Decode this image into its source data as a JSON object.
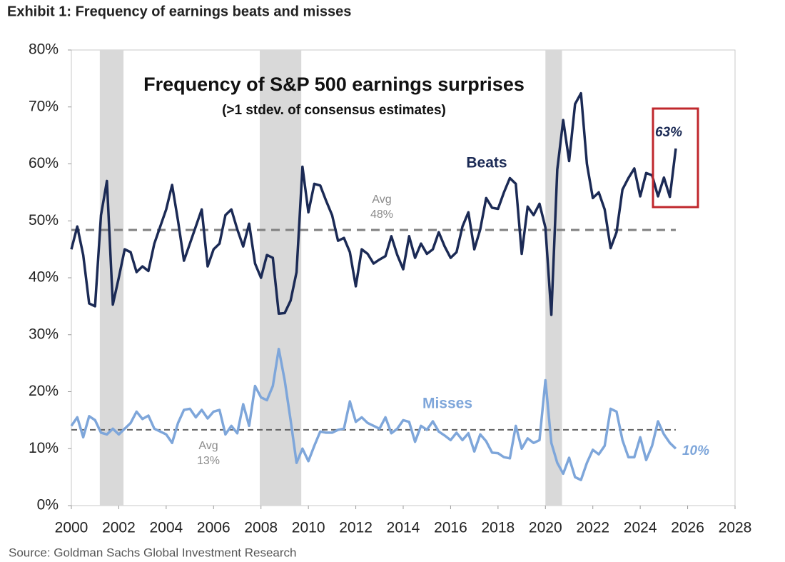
{
  "header": "Exhibit 1: Frequency of earnings beats and misses",
  "source": "Source: Goldman Sachs Global Investment Research",
  "chart_data": {
    "type": "line",
    "title": "Frequency of S&P 500 earnings surprises",
    "subtitle": "(>1 stdev. of consensus estimates)",
    "x": [
      2000,
      2000.25,
      2000.5,
      2000.75,
      2001,
      2001.25,
      2001.5,
      2001.75,
      2002,
      2002.25,
      2002.5,
      2002.75,
      2003,
      2003.25,
      2003.5,
      2003.75,
      2004,
      2004.25,
      2004.5,
      2004.75,
      2005,
      2005.25,
      2005.5,
      2005.75,
      2006,
      2006.25,
      2006.5,
      2006.75,
      2007,
      2007.25,
      2007.5,
      2007.75,
      2008,
      2008.25,
      2008.5,
      2008.75,
      2009,
      2009.25,
      2009.5,
      2009.75,
      2010,
      2010.25,
      2010.5,
      2010.75,
      2011,
      2011.25,
      2011.5,
      2011.75,
      2012,
      2012.25,
      2012.5,
      2012.75,
      2013,
      2013.25,
      2013.5,
      2013.75,
      2014,
      2014.25,
      2014.5,
      2014.75,
      2015,
      2015.25,
      2015.5,
      2015.75,
      2016,
      2016.25,
      2016.5,
      2016.75,
      2017,
      2017.25,
      2017.5,
      2017.75,
      2018,
      2018.25,
      2018.5,
      2018.75,
      2019,
      2019.25,
      2019.5,
      2019.75,
      2020,
      2020.25,
      2020.5,
      2020.75,
      2021,
      2021.25,
      2021.5,
      2021.75,
      2022,
      2022.25,
      2022.5,
      2022.75,
      2023,
      2023.25,
      2023.5,
      2023.75,
      2024,
      2024.25,
      2024.5,
      2024.75,
      2025,
      2025.25,
      2025.5
    ],
    "series": [
      {
        "name": "Beats",
        "color": "#1b2a55",
        "end_label": "63%",
        "values": [
          45,
          49,
          44,
          35.5,
          35,
          51,
          57,
          35.3,
          40,
          45,
          44.5,
          41,
          42,
          41.2,
          46,
          49,
          52,
          56.3,
          50,
          43,
          46,
          49,
          52,
          42,
          45,
          46,
          51,
          52,
          48.5,
          45.5,
          49.5,
          42.5,
          40,
          44,
          43.5,
          33.7,
          33.8,
          36,
          41,
          59.5,
          51.5,
          56.5,
          56.2,
          53.5,
          51,
          46.5,
          47,
          44.5,
          38.5,
          45,
          44.2,
          42.5,
          43.2,
          43.8,
          47.3,
          44,
          41.5,
          47.3,
          43.5,
          46,
          44.2,
          45,
          48,
          45.5,
          43.5,
          44.5,
          49,
          51.5,
          45,
          48.5,
          54,
          52.3,
          52.1,
          55,
          57.5,
          56.5,
          44.2,
          52.5,
          51,
          53,
          48.8,
          33.5,
          59,
          67.7,
          60.5,
          70.5,
          72.4,
          60,
          54,
          55,
          52,
          45.2,
          48,
          55.5,
          57.5,
          59.2,
          54.3,
          58.4,
          58,
          54.3,
          57.6,
          54.2,
          62.7
        ]
      },
      {
        "name": "Misses",
        "color": "#7ea6da",
        "end_label": "10%",
        "values": [
          14,
          15.5,
          12,
          15.7,
          15,
          12.8,
          12.5,
          13.5,
          12.5,
          13.5,
          14.5,
          16.5,
          15.2,
          15.8,
          13.5,
          13,
          12.5,
          11,
          14.5,
          16.8,
          17,
          15.5,
          16.8,
          15.3,
          16.5,
          16.8,
          12.5,
          14,
          12.7,
          17.8,
          14,
          21,
          19,
          18.5,
          21,
          27.5,
          22,
          15,
          7.5,
          10,
          7.8,
          10.5,
          13,
          12.8,
          12.8,
          13.3,
          13.5,
          18.3,
          14.7,
          15.5,
          14.5,
          14,
          13.5,
          15.5,
          12.7,
          13.5,
          15,
          14.7,
          11.2,
          14,
          13.3,
          14.8,
          13,
          12.3,
          11.5,
          12.8,
          11.5,
          12.7,
          9.5,
          12.5,
          11.3,
          9.3,
          9.2,
          8.5,
          8.3,
          14,
          10,
          11.8,
          11,
          11.5,
          22,
          11,
          7.5,
          5.6,
          8.4,
          5,
          4.5,
          7.5,
          9.8,
          9,
          10.5,
          17,
          16.5,
          11.5,
          8.5,
          8.5,
          12,
          8,
          10.5,
          14.8,
          12.5,
          11,
          10
        ]
      }
    ],
    "avg_lines": [
      {
        "label": "Avg",
        "value_label": "48%",
        "value": 48.4
      },
      {
        "label": "Avg",
        "value_label": "13%",
        "value": 13.3
      }
    ],
    "shaded_periods": [
      [
        2001.2,
        2002.2
      ],
      [
        2007.95,
        2009.7
      ],
      [
        2020.0,
        2020.7
      ]
    ],
    "xlim": [
      2000,
      2028
    ],
    "xticks": [
      2000,
      2002,
      2004,
      2006,
      2008,
      2010,
      2012,
      2014,
      2016,
      2018,
      2020,
      2022,
      2024,
      2026,
      2028
    ],
    "ylim": [
      0,
      80
    ],
    "yticks": [
      {
        "value": 0,
        "label": "0%"
      },
      {
        "value": 10,
        "label": "10%"
      },
      {
        "value": 20,
        "label": "20%"
      },
      {
        "value": 30,
        "label": "30%"
      },
      {
        "value": 40,
        "label": "40%"
      },
      {
        "value": 50,
        "label": "50%"
      },
      {
        "value": 60,
        "label": "60%"
      },
      {
        "value": 70,
        "label": "70%"
      },
      {
        "value": 80,
        "label": "80%"
      }
    ]
  }
}
